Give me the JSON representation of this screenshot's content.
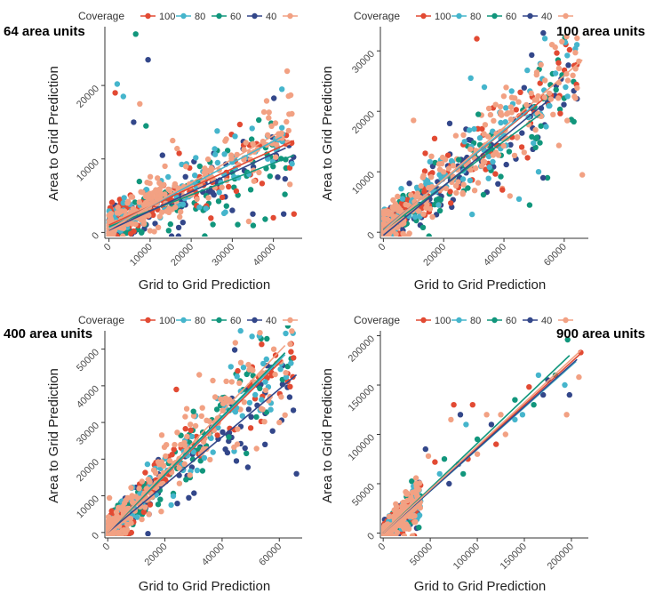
{
  "colors": {
    "100": "#e24a33",
    "80": "#45b5cc",
    "60": "#11967c",
    "40": "#33478a",
    "last": "#f2a183"
  },
  "chart_data": [
    {
      "type": "scatter",
      "title": "64  area units",
      "xlabel": "Grid to Grid Prediction",
      "ylabel": "Area to Grid Prediction",
      "legend_title": "Coverage",
      "legend_labels": [
        "100",
        "80",
        "60",
        "40",
        ""
      ],
      "xticks": [
        0,
        10000,
        20000,
        30000,
        40000
      ],
      "yticks": [
        0,
        10000,
        20000
      ],
      "xlim": [
        -1000,
        47000
      ],
      "ylim": [
        -800,
        28000
      ],
      "x_max": 45000,
      "y_spread": 2500,
      "fits": [
        {
          "name": "100",
          "x0": 0,
          "y0": 1000,
          "x1": 45000,
          "y1": 12500
        },
        {
          "name": "80",
          "x0": 0,
          "y0": 600,
          "x1": 42000,
          "y1": 13000
        },
        {
          "name": "60",
          "x0": 0,
          "y0": 800,
          "x1": 45000,
          "y1": 10500
        },
        {
          "name": "40",
          "x0": 0,
          "y0": 300,
          "x1": 43000,
          "y1": 11500
        },
        {
          "name": "last",
          "x0": 0,
          "y0": 400,
          "x1": 42000,
          "y1": 13800
        }
      ],
      "outliers": [
        {
          "name": "60",
          "x": 6500,
          "y": 27000
        },
        {
          "name": "40",
          "x": 9500,
          "y": 23500
        },
        {
          "name": "80",
          "x": 2000,
          "y": 20200
        },
        {
          "name": "100",
          "x": 1500,
          "y": 19000
        },
        {
          "name": "80",
          "x": 3500,
          "y": 18500
        },
        {
          "name": "last",
          "x": 7500,
          "y": 17500
        },
        {
          "name": "40",
          "x": 6000,
          "y": 15000
        },
        {
          "name": "60",
          "x": 9000,
          "y": 14500
        },
        {
          "name": "40",
          "x": 13000,
          "y": 10500
        },
        {
          "name": "last",
          "x": 15500,
          "y": 12500
        },
        {
          "name": "40",
          "x": 35000,
          "y": 2500
        },
        {
          "name": "100",
          "x": 40000,
          "y": 2000
        },
        {
          "name": "40",
          "x": 42500,
          "y": 2500
        },
        {
          "name": "60",
          "x": 38000,
          "y": 1800
        },
        {
          "name": "100",
          "x": 45000,
          "y": 2500
        },
        {
          "name": "40",
          "x": 30000,
          "y": 3000
        },
        {
          "name": "80",
          "x": 28000,
          "y": 2600
        },
        {
          "name": "last",
          "x": 34000,
          "y": 1500
        }
      ]
    },
    {
      "type": "scatter",
      "title": "100  area units",
      "xlabel": "Grid to Grid Prediction",
      "ylabel": "Area to Grid Prediction",
      "legend_title": "Coverage",
      "legend_labels": [
        "100",
        "80",
        "60",
        "40",
        ""
      ],
      "xticks": [
        0,
        20000,
        40000,
        60000
      ],
      "yticks": [
        0,
        10000,
        20000,
        30000
      ],
      "xlim": [
        -1000,
        68000
      ],
      "ylim": [
        -1000,
        34000
      ],
      "x_max": 65000,
      "y_spread": 3500,
      "fits": [
        {
          "name": "100",
          "x0": 0,
          "y0": 500,
          "x1": 53000,
          "y1": 22000
        },
        {
          "name": "80",
          "x0": 0,
          "y0": 400,
          "x1": 50000,
          "y1": 21000
        },
        {
          "name": "60",
          "x0": 0,
          "y0": 300,
          "x1": 52000,
          "y1": 19500
        },
        {
          "name": "40",
          "x0": 0,
          "y0": -500,
          "x1": 54000,
          "y1": 21500
        },
        {
          "name": "last",
          "x0": 0,
          "y0": 200,
          "x1": 66000,
          "y1": 28500
        }
      ],
      "outliers": [
        {
          "name": "100",
          "x": 31000,
          "y": 32000
        },
        {
          "name": "80",
          "x": 29000,
          "y": 25500
        },
        {
          "name": "80",
          "x": 33500,
          "y": 24000
        },
        {
          "name": "60",
          "x": 31500,
          "y": 19500
        },
        {
          "name": "last",
          "x": 10000,
          "y": 18500
        },
        {
          "name": "100",
          "x": 17000,
          "y": 15500
        },
        {
          "name": "40",
          "x": 22000,
          "y": 18000
        },
        {
          "name": "60",
          "x": 25000,
          "y": 12000
        },
        {
          "name": "80",
          "x": 45000,
          "y": 5500
        },
        {
          "name": "60",
          "x": 48500,
          "y": 4500
        },
        {
          "name": "40",
          "x": 53000,
          "y": 9000
        },
        {
          "name": "80",
          "x": 51500,
          "y": 10000
        },
        {
          "name": "last",
          "x": 66000,
          "y": 9500
        },
        {
          "name": "40",
          "x": 38000,
          "y": 8000
        },
        {
          "name": "100",
          "x": 39500,
          "y": 7000
        },
        {
          "name": "last",
          "x": 42000,
          "y": 6000
        }
      ]
    },
    {
      "type": "scatter",
      "title": "400  area units",
      "xlabel": "Grid to Grid Prediction",
      "ylabel": "Area to Grid Prediction",
      "legend_title": "Coverage",
      "legend_labels": [
        "100",
        "80",
        "60",
        "40",
        ""
      ],
      "xticks": [
        0,
        20000,
        40000,
        60000
      ],
      "yticks": [
        0,
        10000,
        20000,
        30000,
        40000,
        50000
      ],
      "xlim": [
        -1000,
        68000
      ],
      "ylim": [
        -1500,
        55000
      ],
      "x_max": 65000,
      "y_spread": 6000,
      "fits": [
        {
          "name": "100",
          "x0": 0,
          "y0": 0,
          "x1": 61000,
          "y1": 47000
        },
        {
          "name": "80",
          "x0": 0,
          "y0": 0,
          "x1": 62000,
          "y1": 48500
        },
        {
          "name": "60",
          "x0": 0,
          "y0": 0,
          "x1": 62000,
          "y1": 49000
        },
        {
          "name": "40",
          "x0": 0,
          "y0": 0,
          "x1": 66000,
          "y1": 43000
        },
        {
          "name": "last",
          "x0": 0,
          "y0": 0,
          "x1": 62000,
          "y1": 51000
        }
      ],
      "outliers": [
        {
          "name": "last",
          "x": 32000,
          "y": 43000
        },
        {
          "name": "100",
          "x": 24000,
          "y": 39000
        },
        {
          "name": "80",
          "x": 45000,
          "y": 34000
        },
        {
          "name": "60",
          "x": 30000,
          "y": 33000
        },
        {
          "name": "40",
          "x": 66000,
          "y": 16000
        },
        {
          "name": "40",
          "x": 55000,
          "y": 24000
        },
        {
          "name": "last",
          "x": 60000,
          "y": 30000
        },
        {
          "name": "80",
          "x": 57000,
          "y": 33500
        },
        {
          "name": "100",
          "x": 50000,
          "y": 28500
        },
        {
          "name": "60",
          "x": 52000,
          "y": 31500
        },
        {
          "name": "40",
          "x": 48000,
          "y": 23000
        },
        {
          "name": "40",
          "x": 45000,
          "y": 19500
        },
        {
          "name": "last",
          "x": 62000,
          "y": 32000
        }
      ]
    },
    {
      "type": "scatter",
      "title": "900  area units",
      "xlabel": "Grid to Grid Prediction",
      "ylabel": "Area to Grid Prediction",
      "legend_title": "Coverage",
      "legend_labels": [
        "100",
        "80",
        "60",
        "40",
        ""
      ],
      "xticks": [
        0,
        50000,
        100000,
        150000,
        200000
      ],
      "yticks": [
        0,
        50000,
        100000,
        150000,
        200000
      ],
      "xlim": [
        -3000,
        218000
      ],
      "ylim": [
        -5000,
        205000
      ],
      "x_max": 40000,
      "y_spread": 9000,
      "fits": [
        {
          "name": "100",
          "x0": 0,
          "y0": 0,
          "x1": 210000,
          "y1": 182000
        },
        {
          "name": "80",
          "x0": 0,
          "y0": 0,
          "x1": 205000,
          "y1": 174000
        },
        {
          "name": "60",
          "x0": 0,
          "y0": 0,
          "x1": 198000,
          "y1": 180000
        },
        {
          "name": "40",
          "x0": 0,
          "y0": 0,
          "x1": 206000,
          "y1": 176000
        },
        {
          "name": "last",
          "x0": 0,
          "y0": 0,
          "x1": 210000,
          "y1": 185000
        }
      ],
      "outliers": [
        {
          "name": "60",
          "x": 196000,
          "y": 196000
        },
        {
          "name": "100",
          "x": 210000,
          "y": 183000
        },
        {
          "name": "last",
          "x": 208000,
          "y": 158000
        },
        {
          "name": "80",
          "x": 193000,
          "y": 150000
        },
        {
          "name": "60",
          "x": 183000,
          "y": 160000
        },
        {
          "name": "40",
          "x": 198000,
          "y": 140000
        },
        {
          "name": "last",
          "x": 195000,
          "y": 120000
        },
        {
          "name": "80",
          "x": 165000,
          "y": 160000
        },
        {
          "name": "100",
          "x": 155000,
          "y": 148000
        },
        {
          "name": "40",
          "x": 170000,
          "y": 140000
        },
        {
          "name": "60",
          "x": 140000,
          "y": 135000
        },
        {
          "name": "last",
          "x": 125000,
          "y": 120000
        },
        {
          "name": "100",
          "x": 95000,
          "y": 130000
        },
        {
          "name": "100",
          "x": 75000,
          "y": 130000
        },
        {
          "name": "40",
          "x": 82000,
          "y": 120000
        },
        {
          "name": "80",
          "x": 88000,
          "y": 110000
        },
        {
          "name": "last",
          "x": 72000,
          "y": 115000
        },
        {
          "name": "60",
          "x": 100000,
          "y": 95000
        },
        {
          "name": "40",
          "x": 115000,
          "y": 110000
        },
        {
          "name": "last",
          "x": 110000,
          "y": 120000
        },
        {
          "name": "40",
          "x": 45000,
          "y": 85000
        },
        {
          "name": "last",
          "x": 48000,
          "y": 78000
        },
        {
          "name": "100",
          "x": 55000,
          "y": 72000
        },
        {
          "name": "80",
          "x": 60000,
          "y": 60000
        },
        {
          "name": "60",
          "x": 65000,
          "y": 75000
        },
        {
          "name": "40",
          "x": 80000,
          "y": 70000
        },
        {
          "name": "last",
          "x": 130000,
          "y": 100000
        },
        {
          "name": "80",
          "x": 148000,
          "y": 120000
        },
        {
          "name": "100",
          "x": 120000,
          "y": 90000
        },
        {
          "name": "60",
          "x": 160000,
          "y": 130000
        },
        {
          "name": "40",
          "x": 175000,
          "y": 155000
        },
        {
          "name": "80",
          "x": 140000,
          "y": 115000
        },
        {
          "name": "last",
          "x": 100000,
          "y": 80000
        },
        {
          "name": "100",
          "x": 90000,
          "y": 75000
        },
        {
          "name": "40",
          "x": 70000,
          "y": 50000
        },
        {
          "name": "60",
          "x": 85000,
          "y": 60000
        }
      ]
    }
  ]
}
